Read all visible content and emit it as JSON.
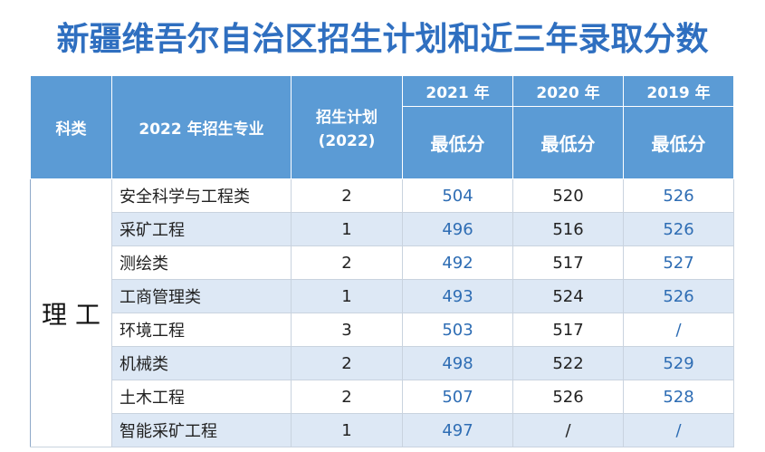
{
  "title": "新疆维吾尔自治区招生计划和近三年录取分数",
  "table": {
    "header": {
      "category": "科类",
      "major": "2022 年招生专业",
      "plan": [
        "招生计划",
        "(2022)"
      ],
      "years": [
        "2021 年",
        "2020 年",
        "2019 年"
      ],
      "score_label": [
        "最低分",
        "最低分",
        "最低分"
      ]
    },
    "category": "理 工",
    "rows": [
      [
        "安全科学与工程类",
        2,
        504,
        520,
        526
      ],
      [
        "采矿工程",
        1,
        496,
        516,
        526
      ],
      [
        "测绘类",
        2,
        492,
        517,
        527
      ],
      [
        "工商管理类",
        1,
        493,
        524,
        526
      ],
      [
        "环境工程",
        3,
        503,
        517,
        "/"
      ],
      [
        "机械类",
        2,
        498,
        522,
        529
      ],
      [
        "土木工程",
        2,
        507,
        526,
        528
      ],
      [
        "智能采矿工程",
        1,
        497,
        "/",
        "/"
      ]
    ]
  }
}
